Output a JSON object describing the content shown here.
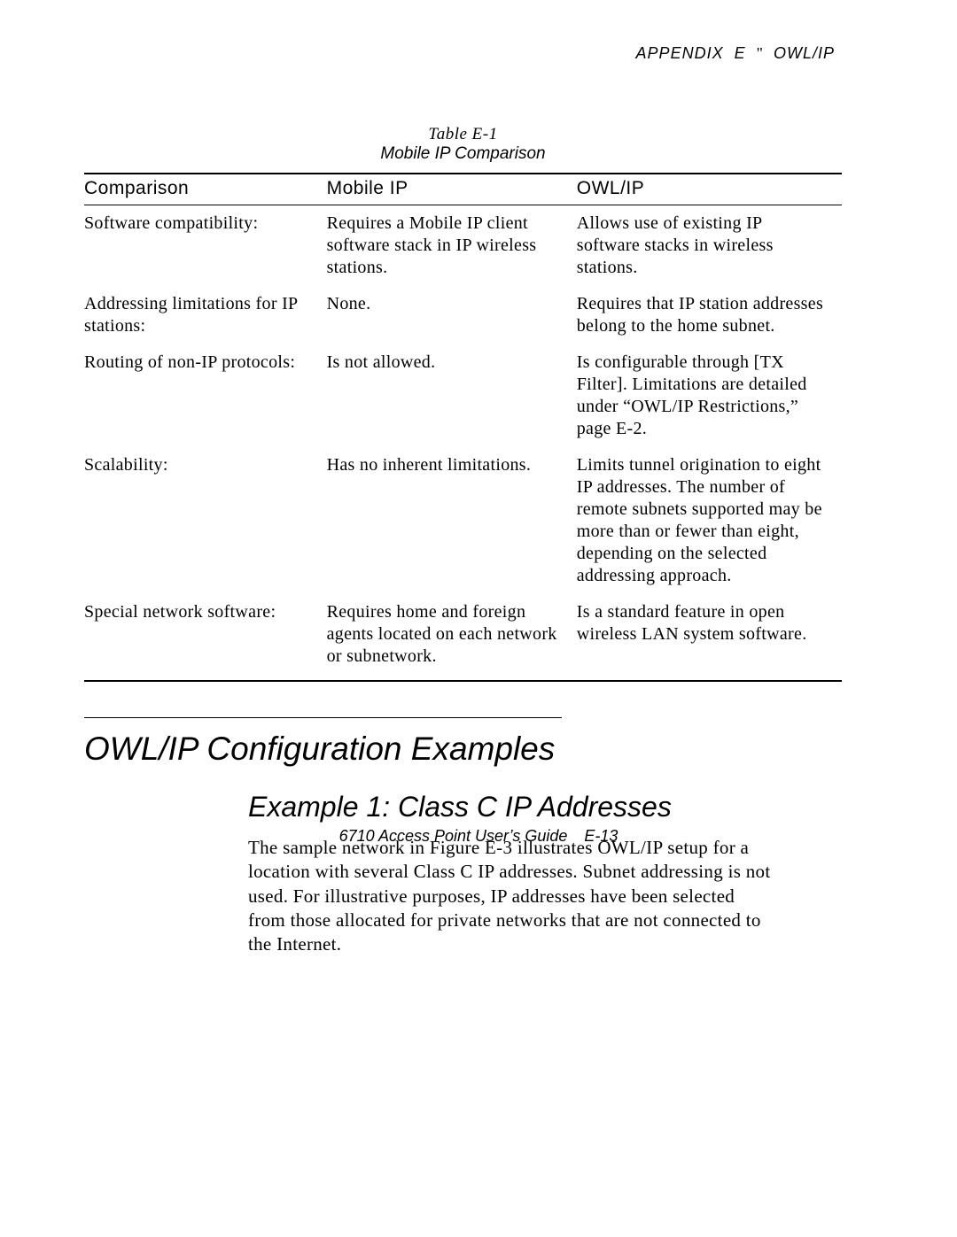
{
  "page": {
    "background_color": "#ffffff",
    "text_color": "#000000"
  },
  "header": {
    "appendix": "APPENDIX E",
    "sep": "\"",
    "title": "OWL/IP"
  },
  "table": {
    "number": "Table E-1",
    "title": "Mobile IP Comparison",
    "columns": [
      "Comparison",
      "Mobile IP",
      "OWL/IP"
    ],
    "rows": [
      {
        "c0": "Software compatibility:",
        "c1": "Requires a Mobile IP client software stack in IP wireless stations.",
        "c2": "Allows use of existing IP software stacks in wireless stations."
      },
      {
        "c0": "Addressing limitations for IP stations:",
        "c1": "None.",
        "c2": "Requires that IP station addresses belong to the home subnet."
      },
      {
        "c0": "Routing of non-IP protocols:",
        "c1": "Is not allowed.",
        "c2": "Is configurable through [TX Filter].  Limitations are detailed under “OWL/IP Restrictions,” page E-2."
      },
      {
        "c0": "Scalability:",
        "c1": "Has no inherent limitations.",
        "c2": "Limits tunnel origination to eight IP addresses.  The number of remote subnets supported may be more than or fewer than eight, depending on the selected addressing approach."
      },
      {
        "c0": "Special network software:",
        "c1": "Requires home and foreign agents located on each network or subnetwork.",
        "c2": "Is a standard feature in open wireless LAN system software."
      }
    ]
  },
  "section": {
    "heading": "OWL/IP Configuration Examples",
    "sub": "Example 1:  Class C IP Addresses",
    "body": "The sample network in Figure E-3 illustrates OWL/IP setup for a location with several Class C IP addresses.  Subnet addressing is not used.  For illustrative purposes, IP addresses have been selected from those allocated for private networks that are not connected to the Internet."
  },
  "footer": {
    "book": "6710 Access Point User’s Guide",
    "page": "E-13"
  },
  "typography": {
    "body_font": "Century Schoolbook",
    "heading_font": "Arial",
    "body_size_pt": 11,
    "heading1_size_pt": 20,
    "heading2_size_pt": 17
  }
}
